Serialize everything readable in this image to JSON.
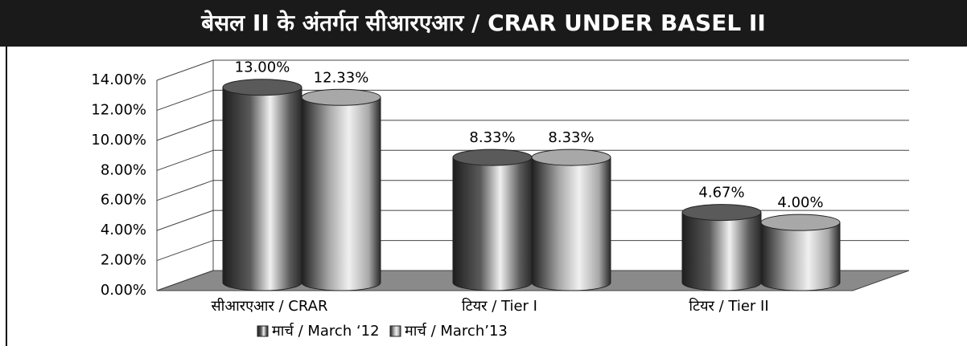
{
  "chart_data": {
    "type": "bar3d",
    "title": "बेसल II के अंतर्गत सीआरएआर / CRAR UNDER BASEL II",
    "categories": [
      "सीआरएआर / CRAR",
      "टियर / Tier I",
      "टियर / Tier II"
    ],
    "series": [
      {
        "name": "मार्च / March ‘12",
        "color": "#5a5a5a",
        "values": [
          13.0,
          8.33,
          4.67
        ],
        "value_labels": [
          "13.00%",
          "8.33%",
          "4.67%"
        ]
      },
      {
        "name": "मार्च / March’13",
        "color": "#a8a8a8",
        "values": [
          12.33,
          8.33,
          4.0
        ],
        "value_labels": [
          "12.33%",
          "8.33%",
          "4.00%"
        ]
      }
    ],
    "ylim": [
      0,
      14
    ],
    "yticks": [
      {
        "value": 0,
        "label": "0.00%"
      },
      {
        "value": 2,
        "label": "2.00%"
      },
      {
        "value": 4,
        "label": "4.00%"
      },
      {
        "value": 6,
        "label": "6.00%"
      },
      {
        "value": 8,
        "label": "8.00%"
      },
      {
        "value": 10,
        "label": "10.00%"
      },
      {
        "value": 12,
        "label": "12.00%"
      },
      {
        "value": 14,
        "label": "14.00%"
      }
    ],
    "grid": true
  }
}
